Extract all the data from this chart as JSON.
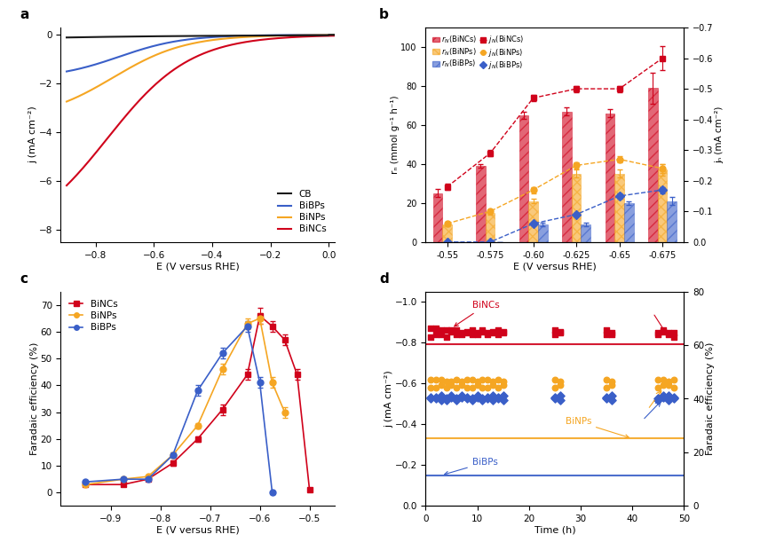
{
  "panel_a": {
    "title": "a",
    "xlabel": "E (V versus RHE)",
    "ylabel": "j (mA cm⁻²)",
    "xlim": [
      -0.92,
      0.02
    ],
    "ylim": [
      -8.5,
      0.3
    ],
    "xticks": [
      -0.8,
      -0.6,
      -0.4,
      -0.2,
      0.0
    ],
    "yticks": [
      0,
      -2,
      -4,
      -6,
      -8
    ],
    "colors": {
      "CB": "#1a1a1a",
      "BiBPs": "#3a5fc8",
      "BiNPs": "#f5a623",
      "BiNCs": "#d0021b"
    }
  },
  "panel_b": {
    "title": "b",
    "xlabel": "E (V versus RHE)",
    "ylabel1": "rₙ (mmol g⁻¹ h⁻¹)",
    "ylabel2": "jₙ (mA cm⁻²)",
    "x_labels": [
      "-0.55",
      "-0.575",
      "-0.60",
      "-0.625",
      "-0.65",
      "-0.675"
    ],
    "bar_width": 0.22,
    "ylim1": [
      0,
      110
    ],
    "ylim2": [
      0.0,
      -0.7
    ],
    "yticks1": [
      0,
      20,
      40,
      60,
      80,
      100
    ],
    "yticks2": [
      0.0,
      -0.1,
      -0.2,
      -0.3,
      -0.4,
      -0.5,
      -0.6,
      -0.7
    ],
    "BiNCs_bar": [
      25,
      39,
      65,
      67,
      66,
      79
    ],
    "BiNPs_bar": [
      9,
      15,
      21,
      35,
      35,
      37
    ],
    "BiBPs_bar": [
      0,
      0,
      9,
      9,
      20,
      21
    ],
    "BiNCs_line": [
      -0.18,
      -0.29,
      -0.47,
      -0.5,
      -0.5,
      -0.6
    ],
    "BiNPs_line": [
      -0.06,
      -0.1,
      -0.17,
      -0.25,
      -0.27,
      -0.24
    ],
    "BiBPs_line": [
      0.0,
      0.0,
      -0.06,
      -0.09,
      -0.15,
      -0.17
    ],
    "BiNCs_bar_err": [
      2,
      1,
      2,
      2,
      2,
      8
    ],
    "BiNPs_bar_err": [
      1,
      1,
      1,
      2,
      2,
      3
    ],
    "BiBPs_bar_err": [
      0,
      0,
      1,
      1,
      1,
      2
    ],
    "BiNCs_line_err": [
      0.01,
      0.01,
      0.01,
      0.01,
      0.01,
      0.04
    ],
    "BiNPs_line_err": [
      0.005,
      0.005,
      0.01,
      0.01,
      0.01,
      0.015
    ],
    "BiBPs_line_err": [
      0.0,
      0.0,
      0.005,
      0.005,
      0.01,
      0.01
    ],
    "colors": {
      "BiNCs": "#d0021b",
      "BiNPs": "#f5a623",
      "BiBPs": "#3a5fc8"
    }
  },
  "panel_c": {
    "title": "c",
    "xlabel": "E (V versus RHE)",
    "ylabel": "Faradaic efficiency (%)",
    "xlim": [
      -1.0,
      -0.45
    ],
    "ylim": [
      -5,
      75
    ],
    "xticks": [
      -0.9,
      -0.8,
      -0.7,
      -0.6,
      -0.5
    ],
    "yticks": [
      0,
      10,
      20,
      30,
      40,
      50,
      60,
      70
    ],
    "BiNCs_x": [
      -0.95,
      -0.875,
      -0.825,
      -0.775,
      -0.725,
      -0.675,
      -0.625,
      -0.6,
      -0.575,
      -0.55,
      -0.525,
      -0.5
    ],
    "BiNCs_y": [
      3,
      3,
      5,
      11,
      20,
      31,
      44,
      66,
      62,
      57,
      44,
      1
    ],
    "BiNCs_err": [
      0.5,
      0.5,
      0.5,
      1,
      1,
      2,
      2,
      3,
      2,
      2,
      2,
      0.5
    ],
    "BiNPs_x": [
      -0.95,
      -0.875,
      -0.825,
      -0.775,
      -0.725,
      -0.675,
      -0.625,
      -0.6,
      -0.575,
      -0.55
    ],
    "BiNPs_y": [
      3,
      5,
      6,
      14,
      25,
      46,
      63,
      65,
      41,
      30
    ],
    "BiNPs_err": [
      0.5,
      0.5,
      0.5,
      1,
      1,
      2,
      2,
      2,
      2,
      2
    ],
    "BiBPs_x": [
      -0.95,
      -0.875,
      -0.825,
      -0.775,
      -0.725,
      -0.675,
      -0.625,
      -0.6,
      -0.575
    ],
    "BiBPs_y": [
      4,
      5,
      5,
      14,
      38,
      52,
      62,
      41,
      0
    ],
    "BiBPs_err": [
      0.5,
      0.5,
      0.5,
      1,
      2,
      2,
      2,
      2,
      0.5
    ],
    "colors": {
      "BiNCs": "#d0021b",
      "BiNPs": "#f5a623",
      "BiBPs": "#3a5fc8"
    }
  },
  "panel_d": {
    "title": "d",
    "xlabel": "Time (h)",
    "ylabel_left": "j (mA cm⁻²)",
    "ylabel_right": "Faradaic efficiency (%)",
    "xlim": [
      0,
      50
    ],
    "ylim_left": [
      0.0,
      -1.05
    ],
    "ylim_right": [
      0,
      80
    ],
    "xticks": [
      0,
      10,
      20,
      30,
      40,
      50
    ],
    "yticks_left": [
      0.0,
      -0.2,
      -0.4,
      -0.6,
      -0.8,
      -1.0
    ],
    "yticks_right": [
      0,
      20,
      40,
      60,
      80
    ],
    "BiNCs_j_line": -0.79,
    "BiNPs_j_line": -0.33,
    "BiBPs_j_line": -0.15,
    "scatter_times_dense": [
      1,
      2,
      3,
      4,
      5,
      6,
      7,
      8,
      9,
      10,
      11,
      12,
      13,
      14,
      15,
      25,
      26,
      35,
      36,
      45,
      46,
      47,
      48
    ],
    "BiNCs_j_scatter": [
      -0.87,
      -0.87,
      -0.86,
      -0.86,
      -0.86,
      -0.86,
      -0.85,
      -0.85,
      -0.86,
      -0.85,
      -0.86,
      -0.85,
      -0.85,
      -0.86,
      -0.85,
      -0.86,
      -0.85,
      -0.86,
      -0.85,
      -0.85,
      -0.86,
      -0.85,
      -0.85
    ],
    "BiNPs_j_scatter": [
      -0.62,
      -0.62,
      -0.62,
      -0.61,
      -0.61,
      -0.62,
      -0.61,
      -0.62,
      -0.62,
      -0.61,
      -0.62,
      -0.62,
      -0.61,
      -0.62,
      -0.61,
      -0.62,
      -0.61,
      -0.62,
      -0.61,
      -0.62,
      -0.62,
      -0.61,
      -0.62
    ],
    "BiBPs_j_scatter": [
      -0.53,
      -0.53,
      -0.52,
      -0.52,
      -0.53,
      -0.52,
      -0.53,
      -0.53,
      -0.52,
      -0.53,
      -0.52,
      -0.53,
      -0.52,
      -0.53,
      -0.52,
      -0.53,
      -0.52,
      -0.53,
      -0.52,
      -0.52,
      -0.53,
      -0.52,
      -0.53
    ],
    "BiNCs_fe_scatter": [
      63,
      64,
      64,
      63,
      65,
      64,
      64,
      65,
      64,
      64,
      65,
      64,
      65,
      64,
      65,
      64,
      65,
      64,
      64,
      64,
      65,
      64,
      63
    ],
    "BiNPs_fe_scatter": [
      44,
      44,
      45,
      44,
      45,
      44,
      45,
      44,
      44,
      45,
      44,
      44,
      45,
      44,
      45,
      44,
      45,
      44,
      45,
      44,
      45,
      45,
      44
    ],
    "BiBPs_fe_scatter": [
      40,
      40,
      41,
      40,
      41,
      40,
      41,
      40,
      40,
      41,
      40,
      40,
      41,
      40,
      41,
      40,
      41,
      40,
      41,
      40,
      41,
      41,
      40
    ],
    "colors": {
      "BiNCs": "#d0021b",
      "BiNPs": "#f5a623",
      "BiBPs": "#3a5fc8"
    }
  },
  "bg_color": "#ffffff"
}
